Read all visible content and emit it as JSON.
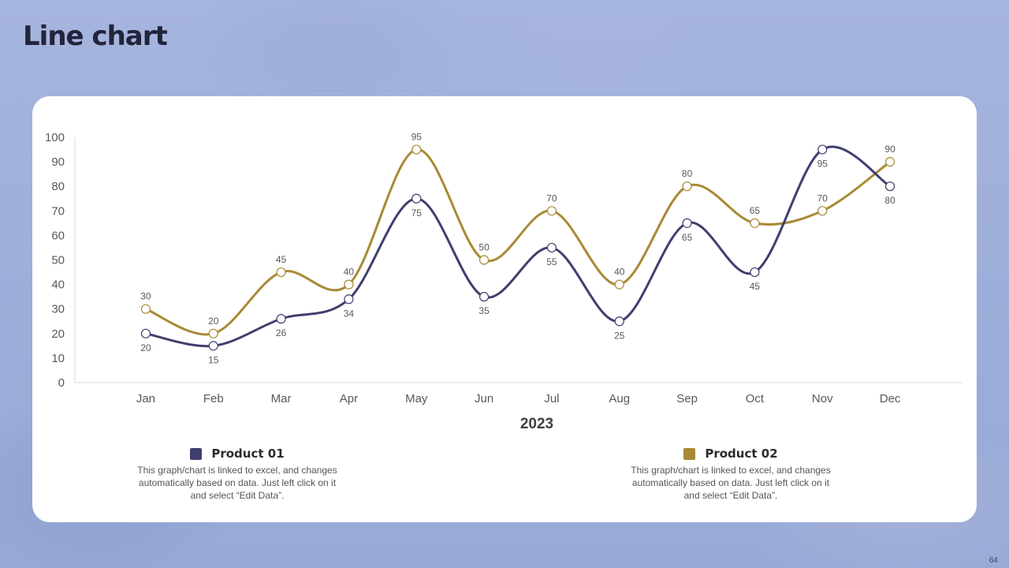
{
  "slide": {
    "title": "Line chart",
    "page_number": "64"
  },
  "legend": [
    {
      "name": "Product 01",
      "color": "#3f3f6e",
      "description": "This graph/chart is linked to excel, and changes automatically based on data. Just left click on it and select “Edit Data”."
    },
    {
      "name": "Product 02",
      "color": "#a88a35",
      "description": "This graph/chart is linked to excel, and changes automatically based on data. Just left click on it and select “Edit Data”."
    }
  ],
  "chart_data": {
    "type": "line",
    "smooth": true,
    "categories": [
      "Jan",
      "Feb",
      "Mar",
      "Apr",
      "May",
      "Jun",
      "Jul",
      "Aug",
      "Sep",
      "Oct",
      "Nov",
      "Dec"
    ],
    "series": [
      {
        "name": "Product 01",
        "color": "#3f3f6e",
        "values": [
          20,
          15,
          26,
          34,
          75,
          35,
          55,
          25,
          65,
          45,
          95,
          80
        ],
        "label_position": "below"
      },
      {
        "name": "Product 02",
        "color": "#a88a35",
        "values": [
          30,
          20,
          45,
          40,
          95,
          50,
          70,
          40,
          80,
          65,
          70,
          90
        ],
        "label_position": "above"
      }
    ],
    "xlabel": "2023",
    "ylabel": "",
    "ylim": [
      0,
      100
    ],
    "yticks": [
      0,
      10,
      20,
      30,
      40,
      50,
      60,
      70,
      80,
      90,
      100
    ],
    "grid": false,
    "legend_position": "bottom"
  }
}
